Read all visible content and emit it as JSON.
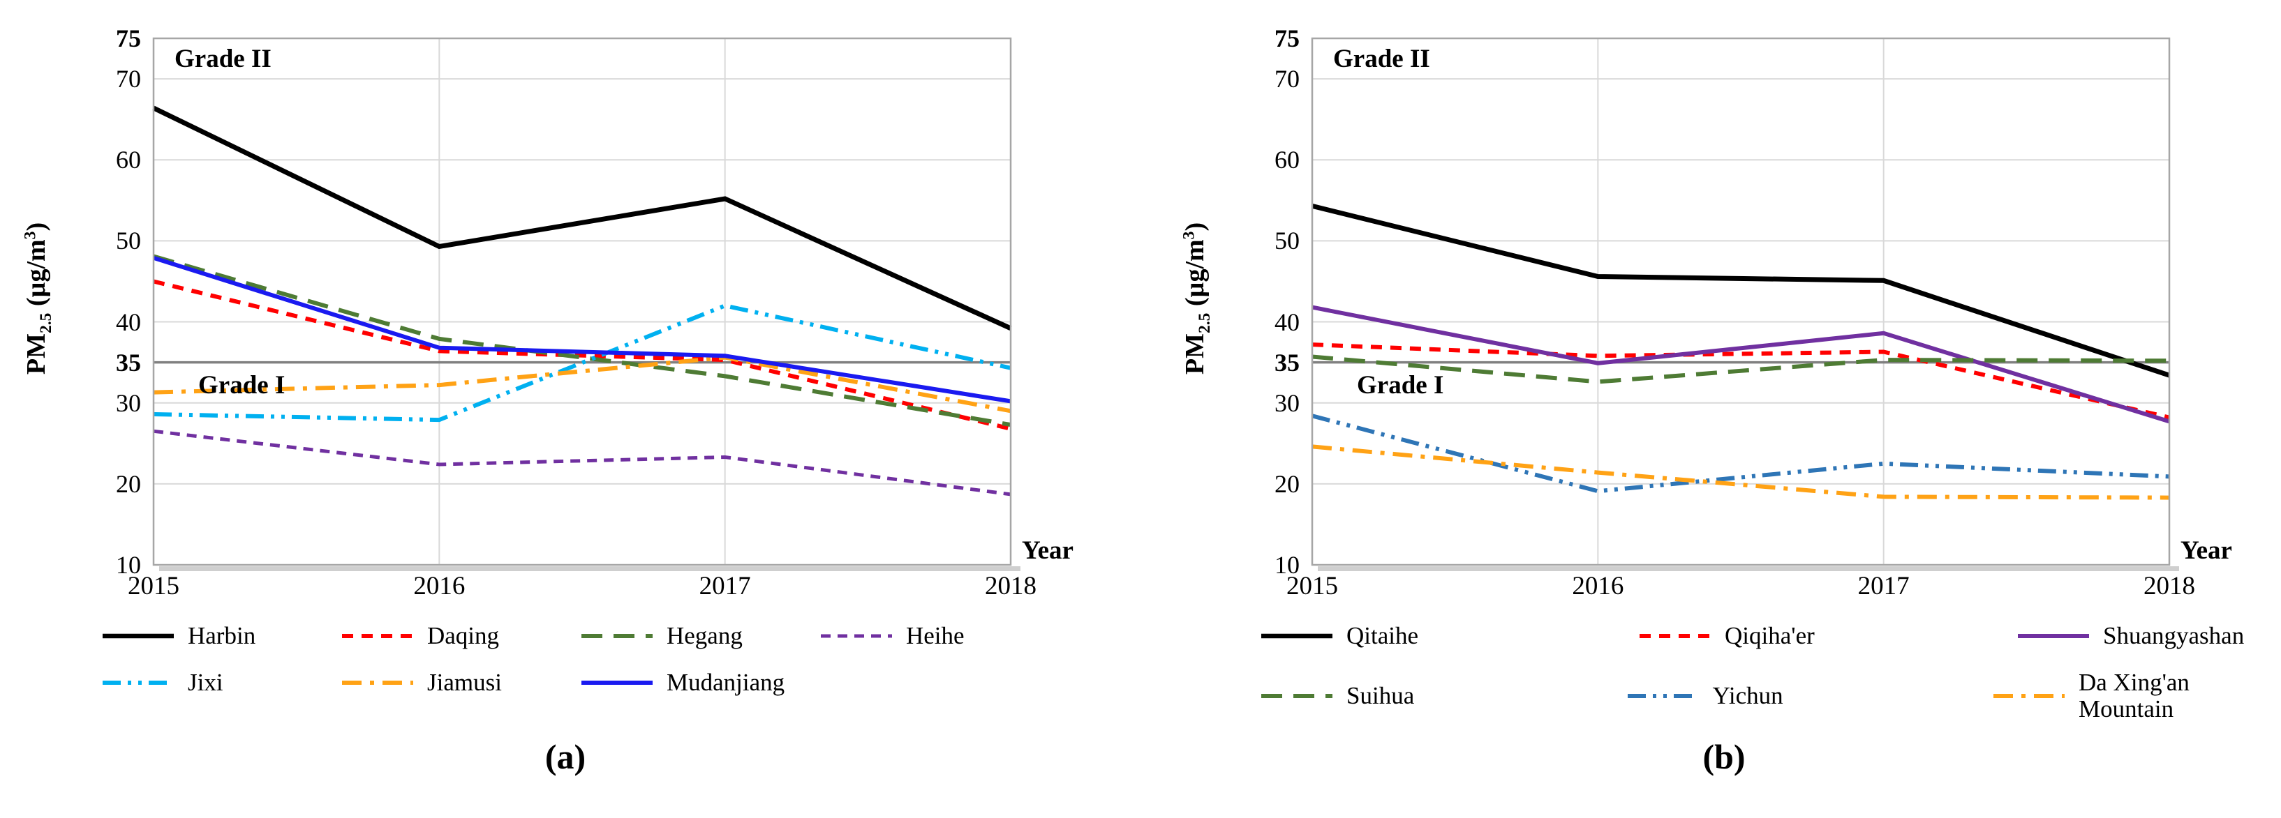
{
  "figure": {
    "ylabel_parts": {
      "prefix": "PM",
      "sub": "2.5",
      "mid": " (µg/m",
      "sup": "3",
      "close": ")"
    },
    "colors": {
      "grid": "#D9D9D9",
      "axis_border": "#A6A6A6",
      "grade_line": "#808080",
      "axis_shadow": "#CFCFCF",
      "background": "#FFFFFF"
    }
  },
  "chart_data": [
    {
      "id": "a",
      "type": "line",
      "caption": "(a)",
      "xlabel": "Year",
      "ylabel": "PM2.5 (µg/m³)",
      "annotations": {
        "grade2": "Grade II",
        "grade1": "Grade I"
      },
      "x": [
        2015,
        2016,
        2017,
        2018
      ],
      "x_tick_labels": [
        "2015",
        "2016",
        "2017",
        "2018"
      ],
      "xlim": [
        2015,
        2018
      ],
      "ylim": [
        10,
        75
      ],
      "yticks": [
        75,
        70,
        60,
        50,
        40,
        35,
        30,
        20,
        10
      ],
      "bold_yticks": [
        75,
        35
      ],
      "gridline_yticks": [
        70,
        60,
        50,
        40,
        30,
        20
      ],
      "grade1_line": 35,
      "grid_x": [
        2016,
        2017
      ],
      "grid": true,
      "legend_position": "bottom",
      "series": [
        {
          "name": "Harbin",
          "color": "#000000",
          "dash": "solid",
          "width": 7,
          "values": [
            66.4,
            49.3,
            55.2,
            39.2
          ]
        },
        {
          "name": "Daqing",
          "color": "#FF0000",
          "dash": "dash",
          "width": 6,
          "values": [
            45.0,
            36.4,
            35.3,
            26.8
          ]
        },
        {
          "name": "Hegang",
          "color": "#4E7B34",
          "dash": "longdash",
          "width": 6,
          "values": [
            48.1,
            37.9,
            33.3,
            27.3
          ]
        },
        {
          "name": "Heihe",
          "color": "#7030A0",
          "dash": "shortdash",
          "width": 5,
          "values": [
            26.5,
            22.4,
            23.3,
            18.7
          ]
        },
        {
          "name": "Jixi",
          "color": "#00B0F0",
          "dash": "dashdotdot",
          "width": 6,
          "values": [
            28.6,
            27.9,
            42.0,
            34.3
          ]
        },
        {
          "name": "Jiamusi",
          "color": "#FFA215",
          "dash": "dashdot",
          "width": 6,
          "values": [
            31.3,
            32.2,
            35.6,
            29.0
          ]
        },
        {
          "name": "Mudanjiang",
          "color": "#1A1AF0",
          "dash": "solid",
          "width": 6,
          "values": [
            47.9,
            36.8,
            35.8,
            30.2
          ]
        }
      ],
      "legend_rows": [
        [
          "Harbin",
          "Daqing",
          "Hegang",
          "Heihe"
        ],
        [
          "Jixi",
          "Jiamusi",
          "Mudanjiang"
        ]
      ]
    },
    {
      "id": "b",
      "type": "line",
      "caption": "(b)",
      "xlabel": "Year",
      "ylabel": "PM2.5 (µg/m³)",
      "annotations": {
        "grade2": "Grade II",
        "grade1": "Grade I"
      },
      "x": [
        2015,
        2016,
        2017,
        2018
      ],
      "x_tick_labels": [
        "2015",
        "2016",
        "2017",
        "2018"
      ],
      "xlim": [
        2015,
        2018
      ],
      "ylim": [
        10,
        75
      ],
      "yticks": [
        75,
        70,
        60,
        50,
        40,
        35,
        30,
        20,
        10
      ],
      "bold_yticks": [
        75,
        35
      ],
      "gridline_yticks": [
        70,
        60,
        50,
        40,
        30,
        20
      ],
      "grade1_line": 35,
      "grid_x": [
        2016,
        2017
      ],
      "grid": true,
      "legend_position": "bottom",
      "series": [
        {
          "name": "Qitaihe",
          "color": "#000000",
          "dash": "solid",
          "width": 7,
          "values": [
            54.3,
            45.6,
            45.1,
            33.4
          ]
        },
        {
          "name": "Qiqiha'er",
          "color": "#FF0000",
          "dash": "dash",
          "width": 6,
          "values": [
            37.2,
            35.8,
            36.3,
            28.2
          ]
        },
        {
          "name": "Shuangyashan",
          "color": "#7030A0",
          "dash": "solid",
          "width": 6,
          "values": [
            41.8,
            34.9,
            38.6,
            27.7
          ]
        },
        {
          "name": "Suihua",
          "color": "#4E7B34",
          "dash": "longdash",
          "width": 6,
          "values": [
            35.7,
            32.6,
            35.3,
            35.2
          ]
        },
        {
          "name": "Yichun",
          "color": "#2E75B6",
          "dash": "dashdotdot",
          "width": 6,
          "values": [
            28.4,
            19.1,
            22.5,
            20.9
          ]
        },
        {
          "name": "Da Xing'an Mountain",
          "color": "#FFA215",
          "dash": "dashdot",
          "width": 6,
          "values": [
            24.6,
            21.4,
            18.4,
            18.3
          ]
        }
      ],
      "legend_rows": [
        [
          "Qitaihe",
          "Qiqiha'er",
          "Shuangyashan"
        ],
        [
          "Suihua",
          "Yichun",
          "Da Xing'an Mountain"
        ]
      ]
    }
  ]
}
